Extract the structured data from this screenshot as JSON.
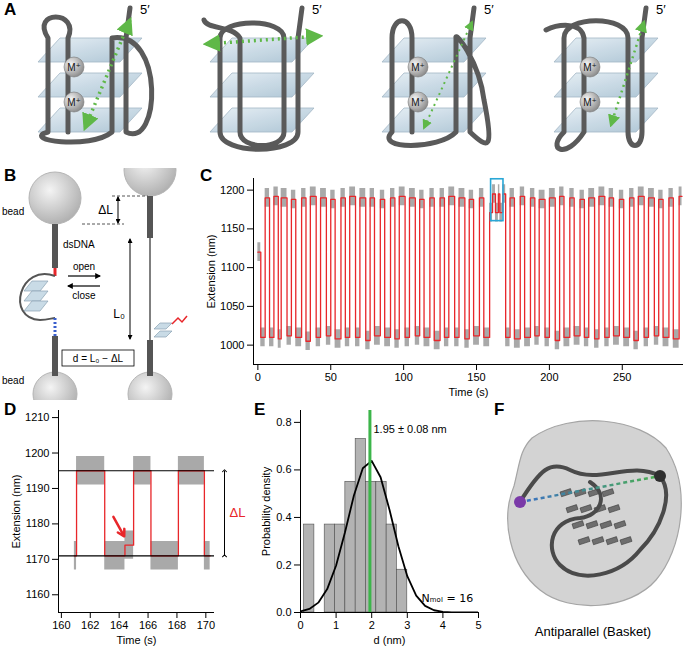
{
  "panels": {
    "A": {
      "letter": "A",
      "diagrams": [
        {
          "five_prime": "5′",
          "ions": [
            "M⁺",
            "M⁺"
          ]
        },
        {
          "five_prime": "5′",
          "ions": []
        },
        {
          "five_prime": "5′",
          "ions": [
            "M⁺",
            "M⁺"
          ]
        },
        {
          "five_prime": "5′",
          "ions": [
            "M⁺",
            "M⁺"
          ]
        }
      ]
    },
    "B": {
      "letter": "B",
      "labels": {
        "bead": "bead",
        "dsDNA": "dsDNA",
        "open": "open",
        "close": "close",
        "delta_L": "ΔL",
        "L0": "L₀",
        "formula": "d = L₀ − ΔL"
      }
    },
    "F": {
      "letter": "F",
      "caption": "Antiparallel (Basket)"
    }
  },
  "chart_data": [
    {
      "panel": "C",
      "type": "line",
      "x_label": "Time (s)",
      "y_label": "Extension (nm)",
      "x": [
        0,
        2,
        5,
        8,
        11,
        14,
        16,
        20,
        23,
        26,
        30,
        33,
        36,
        40,
        43,
        47,
        50,
        53,
        57,
        60,
        63,
        67,
        70,
        74,
        77,
        80,
        84,
        87,
        91,
        94,
        97,
        101,
        104,
        108,
        111,
        114,
        118,
        121,
        125,
        128,
        131,
        135,
        138,
        142,
        145,
        148,
        152,
        155,
        159,
        161,
        163,
        165,
        166,
        168,
        170,
        173,
        176,
        180,
        183,
        187,
        190,
        193,
        197,
        200,
        204,
        207,
        210,
        214,
        217,
        221,
        224,
        227,
        231,
        234,
        238,
        241,
        244,
        248,
        251,
        255,
        258,
        261,
        265,
        268,
        272,
        275,
        278,
        282,
        285,
        289,
        291
      ],
      "values": [
        1120,
        1010,
        1190,
        1010,
        1192,
        1008,
        1190,
        1012,
        1188,
        1010,
        1190,
        1005,
        1192,
        1010,
        1190,
        1012,
        1188,
        1008,
        1190,
        1010,
        1192,
        1010,
        1190,
        1006,
        1190,
        1012,
        1188,
        1010,
        1190,
        1008,
        1192,
        1010,
        1190,
        1012,
        1188,
        1010,
        1190,
        1006,
        1190,
        1010,
        1192,
        1010,
        1190,
        1008,
        1188,
        1012,
        1190,
        1010,
        1171,
        1195,
        1171,
        1195,
        1171,
        1195,
        1010,
        1190,
        1008,
        1192,
        1010,
        1190,
        1012,
        1188,
        1010,
        1190,
        1006,
        1192,
        1010,
        1190,
        1012,
        1188,
        1010,
        1190,
        1008,
        1192,
        1010,
        1190,
        1012,
        1188,
        1010,
        1190,
        1006,
        1192,
        1010,
        1190,
        1012,
        1188,
        1010,
        1190,
        1008,
        1192,
        1192
      ],
      "color": "#e8262a",
      "noise_band": {
        "half_width": 12,
        "color": "#8c8c8c"
      },
      "highlight_box": {
        "x1": 160,
        "x2": 168.5,
        "y1": 1160,
        "y2": 1214,
        "color": "#2aa7d6"
      },
      "xlim": [
        -3,
        292
      ],
      "xticks": [
        0,
        50,
        100,
        150,
        200,
        250
      ],
      "ylim": [
        975,
        1215
      ],
      "yticks": [
        1000,
        1050,
        1100,
        1150,
        1200
      ]
    },
    {
      "panel": "D",
      "type": "line",
      "x_label": "Time (s)",
      "y_label": "Extension (nm)",
      "x": [
        160.9,
        161.05,
        163.0,
        164.4,
        165.0,
        166.2,
        168.1,
        169.9,
        170.3
      ],
      "values": [
        1171,
        1195,
        1171,
        1174,
        1195,
        1171,
        1195,
        1171,
        1171
      ],
      "color": "#e8262a",
      "noise_band": {
        "half_width": 4,
        "color": "#8c8c8c"
      },
      "reference_lines": [
        1171,
        1195
      ],
      "delta_label": {
        "text": "ΔL",
        "color": "#e8262a"
      },
      "arrow_annotation": {
        "x1": 163.6,
        "y1": 1182,
        "x2": 164.35,
        "y2": 1176.5,
        "color": "#e8262a"
      },
      "xlim": [
        159.8,
        170.6
      ],
      "xticks": [
        160,
        162,
        164,
        166,
        168,
        170
      ],
      "ylim": [
        1155,
        1212
      ],
      "yticks": [
        1160,
        1170,
        1180,
        1190,
        1200,
        1210
      ]
    },
    {
      "panel": "E",
      "type": "histogram",
      "x_label": "d (nm)",
      "y_label": "Probability density",
      "bins": [
        0.1,
        0.39,
        0.68,
        0.97,
        1.26,
        1.55,
        1.84,
        2.13,
        2.42,
        2.71,
        3.0
      ],
      "values": [
        0.37,
        0,
        0.37,
        0.37,
        0.55,
        0.73,
        0.55,
        0.55,
        0.37,
        0.18
      ],
      "color": "#b3b3b3",
      "fit": {
        "x": [
          0,
          0.25,
          0.5,
          0.75,
          1,
          1.25,
          1.5,
          1.75,
          2,
          2.25,
          2.5,
          2.75,
          3,
          3.25,
          3.5,
          3.75,
          4,
          4.25,
          4.5,
          4.75,
          5
        ],
        "values": [
          0.0045,
          0.0149,
          0.0415,
          0.0984,
          0.198,
          0.338,
          0.492,
          0.607,
          0.638,
          0.569,
          0.432,
          0.279,
          0.153,
          0.071,
          0.028,
          0.0095,
          0.0027,
          0.0007,
          0.0001,
          0,
          0
        ],
        "color": "#000000"
      },
      "mean_line": {
        "value": 1.95,
        "color": "#3cb54a"
      },
      "annotations": [
        {
          "text": "1.95 ± 0.08 nm",
          "x": 2.05,
          "y": 0.77
        },
        {
          "text": "Nₘₒₗ = 16",
          "x": 4.85,
          "y": 0.06
        }
      ],
      "xlim": [
        0,
        5
      ],
      "xticks": [
        0,
        1,
        2,
        3,
        4,
        5
      ],
      "ylim": [
        0,
        0.85
      ],
      "yticks": [
        {
          "value": 0,
          "label": "0.0"
        },
        0.2,
        0.4,
        0.6,
        0.8
      ]
    }
  ]
}
